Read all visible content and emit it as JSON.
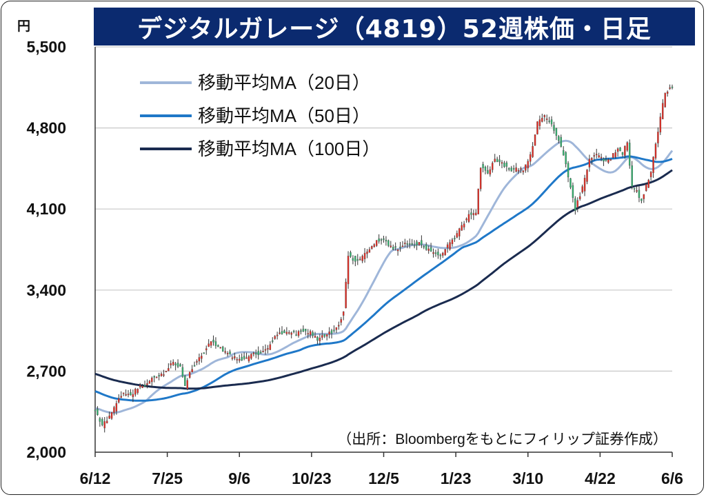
{
  "chart_data": {
    "type": "candlestick",
    "title": "デジタルガレージ（4819）52週株価・日足",
    "ylabel": "円",
    "source_note": "（出所：Bloombergをもとにフィリップ証券作成）",
    "ylim": [
      2000,
      5500
    ],
    "y_ticks": [
      "5,500",
      "4,800",
      "4,100",
      "3,400",
      "2,700",
      "2,000"
    ],
    "y_tick_values": [
      5500,
      4800,
      4100,
      3400,
      2700,
      2000
    ],
    "x_ticks": [
      "6/12",
      "7/25",
      "9/6",
      "10/23",
      "12/5",
      "1/23",
      "3/10",
      "4/22",
      "6/6"
    ],
    "grid": "horizontal",
    "legend_position": "top-left",
    "colors": {
      "up": "#e8271e",
      "down": "#2fb56e",
      "ma20": "#9fb6d9",
      "ma50": "#1f78c8",
      "ma100": "#1a2b4f",
      "title_bg": "#0b2a6f"
    },
    "legend": [
      {
        "name": "移動平均MA（20日）",
        "key": "ma20"
      },
      {
        "name": "移動平均MA（50日）",
        "key": "ma50"
      },
      {
        "name": "移動平均MA（100日）",
        "key": "ma100"
      }
    ],
    "close_anchors": [
      [
        0,
        2360
      ],
      [
        3,
        2230
      ],
      [
        6,
        2300
      ],
      [
        9,
        2420
      ],
      [
        12,
        2520
      ],
      [
        15,
        2490
      ],
      [
        18,
        2560
      ],
      [
        21,
        2570
      ],
      [
        24,
        2640
      ],
      [
        27,
        2650
      ],
      [
        30,
        2700
      ],
      [
        33,
        2780
      ],
      [
        36,
        2730
      ],
      [
        38,
        2560
      ],
      [
        40,
        2700
      ],
      [
        43,
        2790
      ],
      [
        46,
        2860
      ],
      [
        49,
        2960
      ],
      [
        52,
        2920
      ],
      [
        55,
        2860
      ],
      [
        58,
        2830
      ],
      [
        61,
        2800
      ],
      [
        64,
        2810
      ],
      [
        67,
        2860
      ],
      [
        70,
        2850
      ],
      [
        73,
        2910
      ],
      [
        76,
        3000
      ],
      [
        79,
        3030
      ],
      [
        82,
        3040
      ],
      [
        85,
        3020
      ],
      [
        88,
        3050
      ],
      [
        91,
        3030
      ],
      [
        94,
        2970
      ],
      [
        97,
        3010
      ],
      [
        100,
        3040
      ],
      [
        103,
        3100
      ],
      [
        105,
        3220
      ],
      [
        107,
        3700
      ],
      [
        110,
        3650
      ],
      [
        113,
        3680
      ],
      [
        116,
        3760
      ],
      [
        119,
        3820
      ],
      [
        122,
        3830
      ],
      [
        125,
        3770
      ],
      [
        128,
        3760
      ],
      [
        131,
        3800
      ],
      [
        134,
        3780
      ],
      [
        137,
        3810
      ],
      [
        140,
        3760
      ],
      [
        143,
        3720
      ],
      [
        146,
        3700
      ],
      [
        149,
        3780
      ],
      [
        152,
        3850
      ],
      [
        155,
        3950
      ],
      [
        158,
        4050
      ],
      [
        161,
        4080
      ],
      [
        163,
        4460
      ],
      [
        166,
        4420
      ],
      [
        169,
        4520
      ],
      [
        172,
        4500
      ],
      [
        175,
        4430
      ],
      [
        178,
        4450
      ],
      [
        181,
        4440
      ],
      [
        184,
        4560
      ],
      [
        187,
        4840
      ],
      [
        190,
        4900
      ],
      [
        193,
        4820
      ],
      [
        196,
        4700
      ],
      [
        199,
        4500
      ],
      [
        201,
        4280
      ],
      [
        203,
        4100
      ],
      [
        206,
        4280
      ],
      [
        209,
        4520
      ],
      [
        212,
        4570
      ],
      [
        215,
        4520
      ],
      [
        218,
        4540
      ],
      [
        221,
        4630
      ],
      [
        223,
        4580
      ],
      [
        225,
        4680
      ],
      [
        227,
        4300
      ],
      [
        229,
        4250
      ],
      [
        231,
        4170
      ],
      [
        233,
        4300
      ],
      [
        235,
        4420
      ],
      [
        237,
        4650
      ],
      [
        239,
        4900
      ],
      [
        241,
        5100
      ],
      [
        243,
        5150
      ],
      [
        244,
        5160
      ]
    ],
    "series": [
      {
        "name": "移動平均MA（20日）",
        "window": 20
      },
      {
        "name": "移動平均MA（50日）",
        "window": 50
      },
      {
        "name": "移動平均MA（100日）",
        "window": 100
      }
    ]
  }
}
